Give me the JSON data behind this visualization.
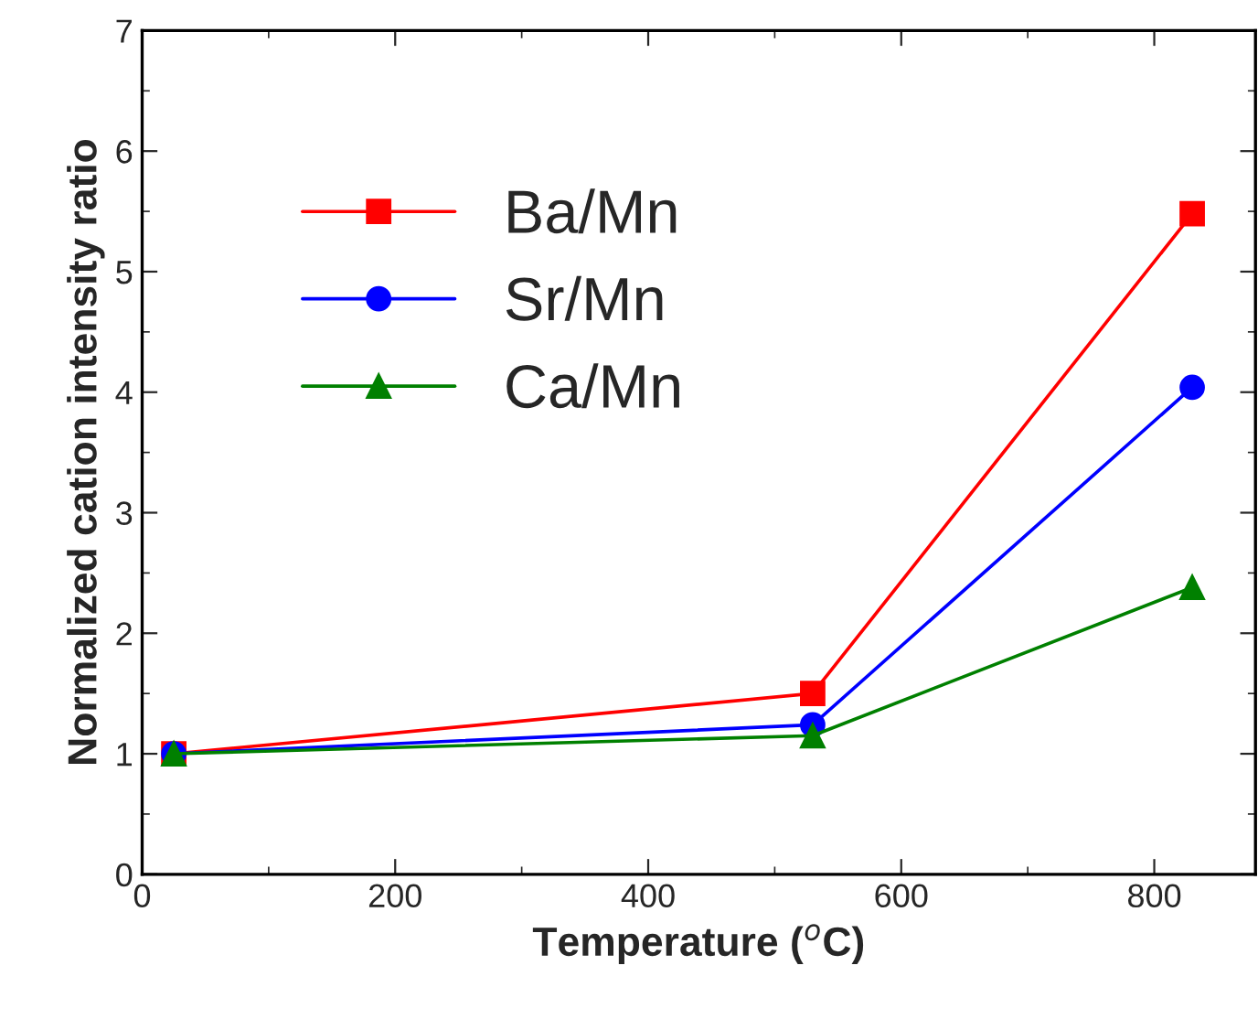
{
  "chart_data": {
    "type": "line",
    "xlabel": "Temperature ($^{o}$C)",
    "ylabel": "Normalized cation intensity ratio",
    "x": [
      25,
      530,
      830
    ],
    "series": [
      {
        "name": "Ba/Mn",
        "color": "#ff0000",
        "marker": "square",
        "values": [
          1.0,
          1.5,
          5.48
        ]
      },
      {
        "name": "Sr/Mn",
        "color": "#0000ff",
        "marker": "circle",
        "values": [
          1.0,
          1.24,
          4.04
        ]
      },
      {
        "name": "Ca/Mn",
        "color": "#008000",
        "marker": "triangle",
        "values": [
          1.0,
          1.15,
          2.38
        ]
      }
    ],
    "xlim": [
      0,
      880
    ],
    "xticks": [
      0,
      200,
      400,
      600,
      800
    ],
    "ylim": [
      0,
      7
    ],
    "yticks": [
      0,
      1,
      2,
      3,
      4,
      5,
      6,
      7
    ],
    "grid": false,
    "legend": "top left",
    "line_style": "solid"
  }
}
